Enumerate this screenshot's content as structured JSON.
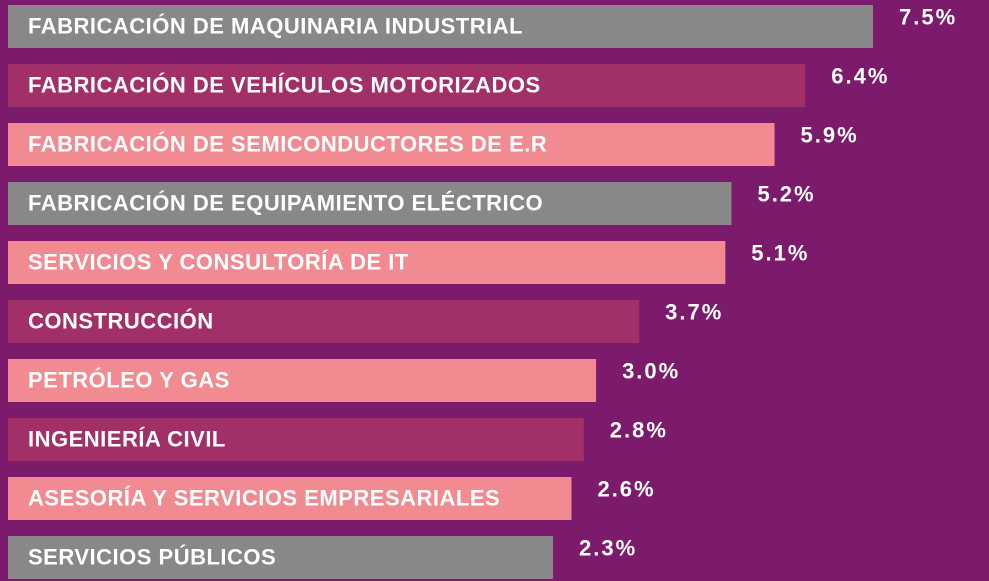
{
  "chart_data": {
    "type": "bar",
    "orientation": "horizontal",
    "categories": [
      "FABRICACIÓN DE MAQUINARIA INDUSTRIAL",
      "FABRICACIÓN DE VEHÍCULOS MOTORIZADOS",
      "FABRICACIÓN DE SEMICONDUCTORES DE E.R",
      "FABRICACIÓN DE EQUIPAMIENTO ELÉCTRICO",
      "SERVICIOS Y CONSULTORÍA DE IT",
      "CONSTRUCCIÓN",
      "PETRÓLEO Y GAS",
      "INGENIERÍA CIVIL",
      "ASESORÍA Y SERVICIOS EMPRESARIALES",
      "SERVICIOS PÚBLICOS"
    ],
    "values": [
      7.5,
      6.4,
      5.9,
      5.2,
      5.1,
      3.7,
      3.0,
      2.8,
      2.6,
      2.3
    ],
    "value_labels": [
      "7.5%",
      "6.4%",
      "5.9%",
      "5.2%",
      "5.1%",
      "3.7%",
      "3.0%",
      "2.8%",
      "2.6%",
      "2.3%"
    ],
    "colors": [
      "#8a8789",
      "#a23068",
      "#f28b91",
      "#8a8789",
      "#f28b91",
      "#a23068",
      "#f28b91",
      "#a23068",
      "#f28b91",
      "#8a8789"
    ]
  }
}
